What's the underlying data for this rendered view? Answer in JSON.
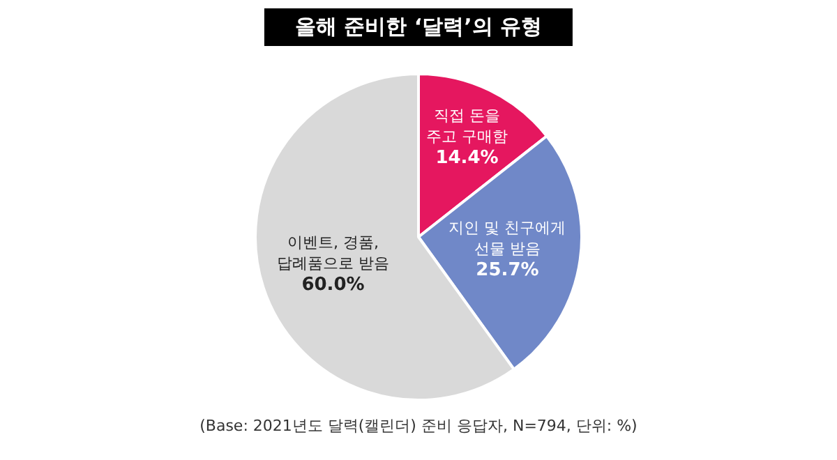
{
  "chart_data": {
    "type": "pie",
    "title": "올해 준비한 ‘달력’의 유형",
    "categories": [
      "직접 돈을\n주고 구매함",
      "지인 및 친구에게\n선물 받음",
      "이벤트, 경품,\n답례품으로 받음"
    ],
    "values": [
      14.4,
      25.7,
      60.0
    ],
    "value_labels": [
      "14.4%",
      "25.7%",
      "60.0%"
    ],
    "colors": [
      "#e5175f",
      "#7088c8",
      "#d9d9d9"
    ],
    "annotations": [
      "(Base: 2021년도 달력(캘린더) 준비 응답자, N=794, 단위: %)"
    ]
  }
}
